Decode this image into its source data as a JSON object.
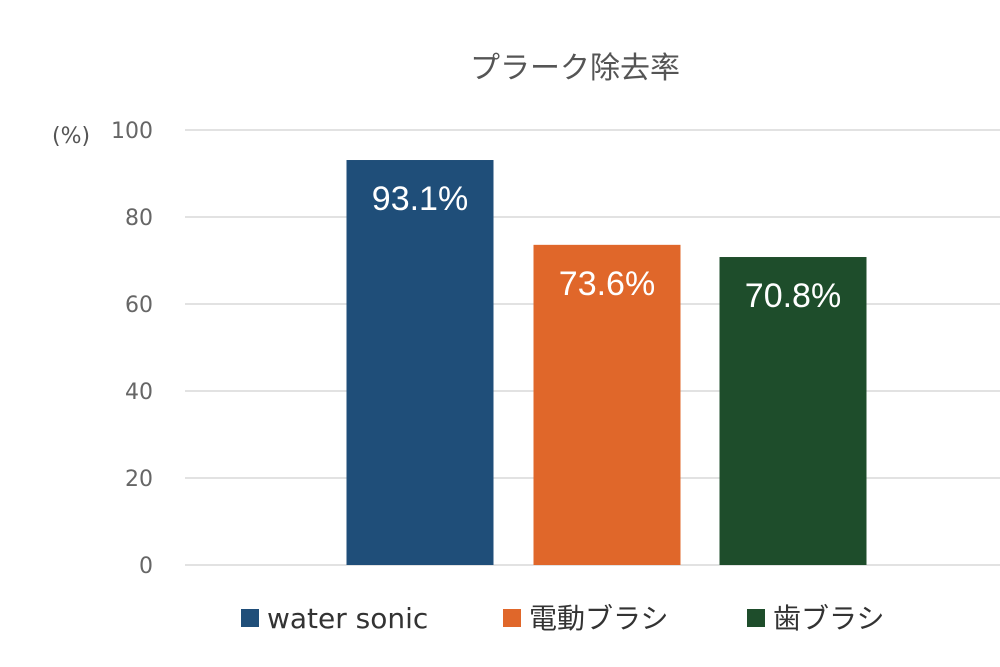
{
  "chart_data": {
    "type": "bar",
    "title": "プラーク除去率",
    "ylabel": "(%)",
    "xlabel": "",
    "ylim": [
      0,
      100
    ],
    "yticks": [
      0,
      20,
      40,
      60,
      80,
      100
    ],
    "grid": true,
    "legend_position": "bottom",
    "categories": [
      "water sonic",
      "電動ブラシ",
      "歯ブラシ"
    ],
    "values": [
      93.1,
      73.6,
      70.8
    ],
    "data_labels": [
      "93.1%",
      "73.6%",
      "70.8%"
    ],
    "colors": [
      "#1f4e79",
      "#e0672a",
      "#1e4d2b"
    ]
  }
}
